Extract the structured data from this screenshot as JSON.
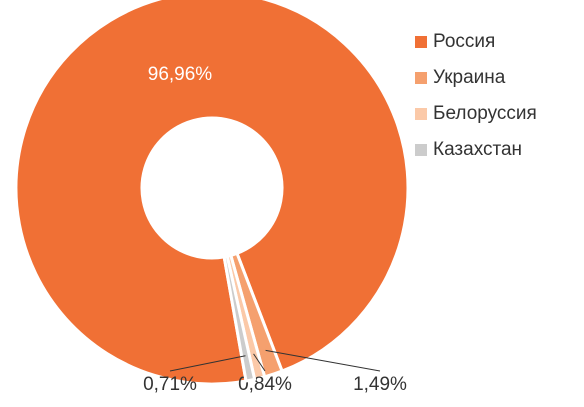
{
  "chart_data": {
    "type": "donut",
    "categories": [
      "Россия",
      "Украина",
      "Белоруссия",
      "Казахстан"
    ],
    "values": [
      96.96,
      1.49,
      0.84,
      0.71
    ],
    "value_labels": [
      "96,96%",
      "1,49%",
      "0,84%",
      "0,71%"
    ],
    "colors": [
      "#f07035",
      "#f5a06e",
      "#fbc9a8",
      "#cccccc"
    ],
    "legend": "right"
  }
}
